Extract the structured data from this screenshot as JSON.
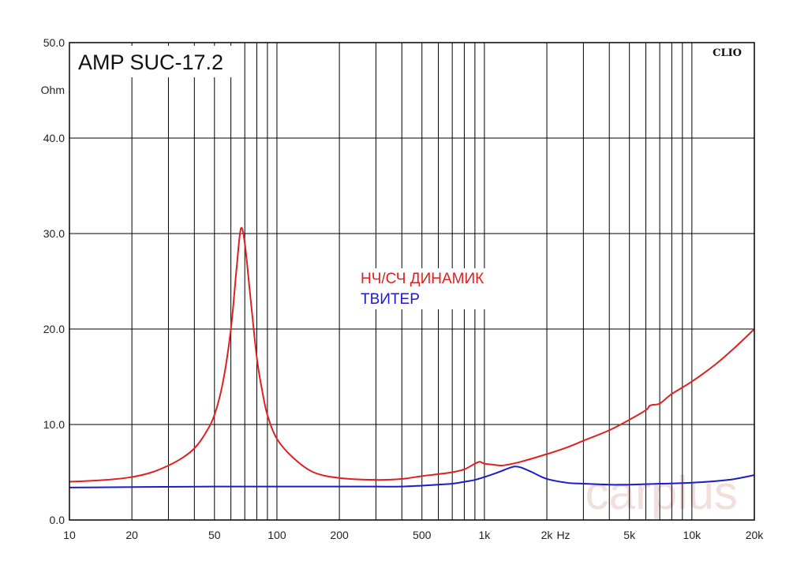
{
  "chart_data": {
    "type": "line",
    "title": "AMP SUC-17.2",
    "brand": "CLIO",
    "watermark": "carplus",
    "y_unit": "Ohm",
    "x_unit": "Hz",
    "xscale": "log",
    "xlim": [
      10,
      20000
    ],
    "ylim": [
      0,
      50
    ],
    "grid": true,
    "y_ticks": [
      {
        "value": 0,
        "label": "0.0"
      },
      {
        "value": 10,
        "label": "10.0"
      },
      {
        "value": 20,
        "label": "20.0"
      },
      {
        "value": 30,
        "label": "30.0"
      },
      {
        "value": 40,
        "label": "40.0"
      },
      {
        "value": 50,
        "label": "50.0"
      }
    ],
    "x_ticks": [
      {
        "value": 10,
        "label": "10"
      },
      {
        "value": 20,
        "label": "20"
      },
      {
        "value": 50,
        "label": "50"
      },
      {
        "value": 100,
        "label": "100"
      },
      {
        "value": 200,
        "label": "200"
      },
      {
        "value": 500,
        "label": "500"
      },
      {
        "value": 1000,
        "label": "1k"
      },
      {
        "value": 2000,
        "label": "2k"
      },
      {
        "value": 5000,
        "label": "5k"
      },
      {
        "value": 10000,
        "label": "10k"
      },
      {
        "value": 20000,
        "label": "20k"
      }
    ],
    "legend_placement": "center",
    "series": [
      {
        "name": "НЧ/СЧ ДИНАМИК",
        "color": "#e02020",
        "points": [
          [
            10,
            4.0
          ],
          [
            15,
            4.2
          ],
          [
            20,
            4.5
          ],
          [
            25,
            5.0
          ],
          [
            30,
            5.7
          ],
          [
            35,
            6.5
          ],
          [
            40,
            7.5
          ],
          [
            45,
            9.0
          ],
          [
            50,
            11.0
          ],
          [
            55,
            14.5
          ],
          [
            60,
            20.0
          ],
          [
            64,
            26.5
          ],
          [
            67,
            30.5
          ],
          [
            70,
            29.0
          ],
          [
            74,
            24.0
          ],
          [
            80,
            17.0
          ],
          [
            85,
            13.5
          ],
          [
            90,
            11.0
          ],
          [
            100,
            8.5
          ],
          [
            120,
            6.5
          ],
          [
            150,
            5.0
          ],
          [
            200,
            4.4
          ],
          [
            300,
            4.2
          ],
          [
            400,
            4.3
          ],
          [
            500,
            4.6
          ],
          [
            600,
            4.8
          ],
          [
            700,
            5.0
          ],
          [
            800,
            5.3
          ],
          [
            900,
            5.9
          ],
          [
            950,
            6.1
          ],
          [
            1000,
            5.9
          ],
          [
            1100,
            5.8
          ],
          [
            1200,
            5.7
          ],
          [
            1300,
            5.8
          ],
          [
            1500,
            6.1
          ],
          [
            2000,
            6.9
          ],
          [
            2500,
            7.6
          ],
          [
            3000,
            8.3
          ],
          [
            4000,
            9.4
          ],
          [
            5000,
            10.5
          ],
          [
            6000,
            11.5
          ],
          [
            6300,
            12.0
          ],
          [
            7000,
            12.2
          ],
          [
            8000,
            13.2
          ],
          [
            10000,
            14.5
          ],
          [
            13000,
            16.3
          ],
          [
            16000,
            18.0
          ],
          [
            20000,
            20.0
          ]
        ]
      },
      {
        "name": "ТВИТЕР",
        "color": "#1c1ccc",
        "points": [
          [
            10,
            3.4
          ],
          [
            50,
            3.5
          ],
          [
            100,
            3.5
          ],
          [
            200,
            3.5
          ],
          [
            300,
            3.5
          ],
          [
            400,
            3.5
          ],
          [
            500,
            3.6
          ],
          [
            600,
            3.7
          ],
          [
            700,
            3.8
          ],
          [
            800,
            4.0
          ],
          [
            900,
            4.2
          ],
          [
            1000,
            4.5
          ],
          [
            1100,
            4.8
          ],
          [
            1200,
            5.1
          ],
          [
            1300,
            5.4
          ],
          [
            1400,
            5.6
          ],
          [
            1500,
            5.5
          ],
          [
            1700,
            5.0
          ],
          [
            2000,
            4.3
          ],
          [
            2500,
            3.9
          ],
          [
            3000,
            3.8
          ],
          [
            4000,
            3.7
          ],
          [
            5000,
            3.7
          ],
          [
            7000,
            3.8
          ],
          [
            10000,
            3.9
          ],
          [
            15000,
            4.2
          ],
          [
            20000,
            4.7
          ]
        ]
      }
    ]
  }
}
